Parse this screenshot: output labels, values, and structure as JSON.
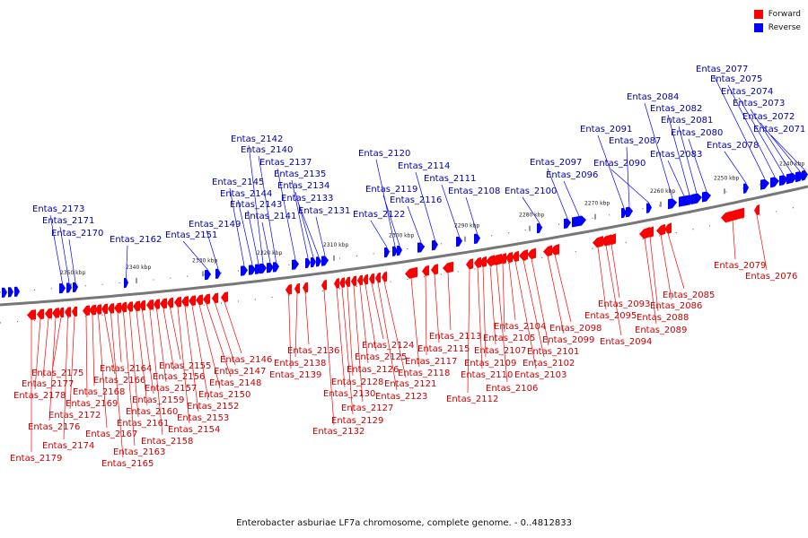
{
  "colors": {
    "forward": "#ff0000",
    "reverse": "#0000ff",
    "backbone": "#777777",
    "forward_label": "#cc0000",
    "reverse_label": "#0000aa"
  },
  "legend": {
    "forward_label": "Forward",
    "reverse_label": "Reverse"
  },
  "caption": "Enterobacter asburiae LF7a chromosome, complete genome. - 0..4812833",
  "kbp_ticks": [
    "2350 kbp",
    "2340 kbp",
    "2330 kbp",
    "2320 kbp",
    "2310 kbp",
    "2300 kbp",
    "2290 kbp",
    "2280 kbp",
    "2270 kbp",
    "2260 kbp",
    "2250 kbp",
    "2240 kbp"
  ],
  "reverse_genes": [
    "Entas_2173",
    "Entas_2171",
    "Entas_2170",
    "Entas_2162",
    "Entas_2151",
    "Entas_2149",
    "Entas_2145",
    "Entas_2144",
    "Entas_2143",
    "Entas_2142",
    "Entas_2141",
    "Entas_2140",
    "Entas_2137",
    "Entas_2135",
    "Entas_2134",
    "Entas_2133",
    "Entas_2131",
    "Entas_2122",
    "Entas_2120",
    "Entas_2119",
    "Entas_2116",
    "Entas_2114",
    "Entas_2111",
    "Entas_2108",
    "Entas_2100",
    "Entas_2097",
    "Entas_2096",
    "Entas_2091",
    "Entas_2090",
    "Entas_2087",
    "Entas_2084",
    "Entas_2083",
    "Entas_2082",
    "Entas_2081",
    "Entas_2080",
    "Entas_2078",
    "Entas_2077",
    "Entas_2075",
    "Entas_2074",
    "Entas_2073",
    "Entas_2072",
    "Entas_2071"
  ],
  "forward_genes": [
    "Entas_2179",
    "Entas_2178",
    "Entas_2177",
    "Entas_2176",
    "Entas_2175",
    "Entas_2174",
    "Entas_2172",
    "Entas_2169",
    "Entas_2168",
    "Entas_2167",
    "Entas_2166",
    "Entas_2165",
    "Entas_2164",
    "Entas_2163",
    "Entas_2161",
    "Entas_2160",
    "Entas_2159",
    "Entas_2158",
    "Entas_2157",
    "Entas_2156",
    "Entas_2155",
    "Entas_2154",
    "Entas_2153",
    "Entas_2152",
    "Entas_2150",
    "Entas_2148",
    "Entas_2147",
    "Entas_2146",
    "Entas_2139",
    "Entas_2138",
    "Entas_2136",
    "Entas_2132",
    "Entas_2130",
    "Entas_2129",
    "Entas_2128",
    "Entas_2127",
    "Entas_2126",
    "Entas_2125",
    "Entas_2124",
    "Entas_2123",
    "Entas_2121",
    "Entas_2118",
    "Entas_2117",
    "Entas_2115",
    "Entas_2113",
    "Entas_2112",
    "Entas_2110",
    "Entas_2109",
    "Entas_2107",
    "Entas_2106",
    "Entas_2105",
    "Entas_2104",
    "Entas_2103",
    "Entas_2102",
    "Entas_2101",
    "Entas_2099",
    "Entas_2098",
    "Entas_2095",
    "Entas_2094",
    "Entas_2093",
    "Entas_2089",
    "Entas_2088",
    "Entas_2086",
    "Entas_2085",
    "Entas_2079",
    "Entas_2076"
  ]
}
